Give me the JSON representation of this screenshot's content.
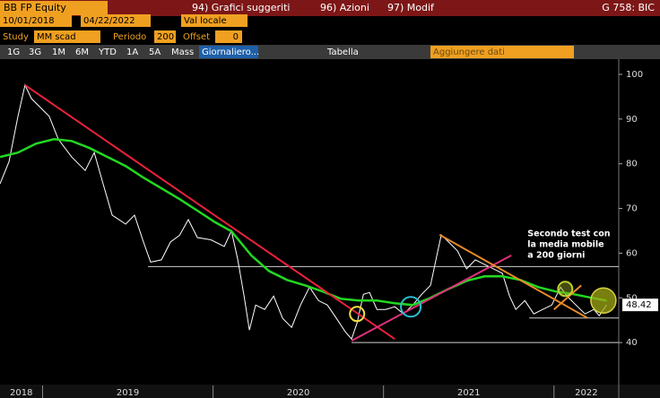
{
  "toolbar": {
    "ticker": "BB FP Equity",
    "menu": [
      "94) Grafici suggeriti",
      "96) Azioni",
      "97) Modif"
    ],
    "code": "G 758: BIC",
    "start_date": "10/01/2018",
    "dash": "-",
    "end_date": "04/22/2022",
    "currency": "Val locale",
    "study_label": "Study",
    "study": "MM scad",
    "period_label": "Periodo",
    "period": "200",
    "offset_label": "Offset",
    "offset": "0",
    "ranges": [
      "1G",
      "3G",
      "1M",
      "6M",
      "YTD",
      "1A",
      "5A",
      "Mass"
    ],
    "frequency": "Giornaliero...",
    "table": "Tabella",
    "add_data": "Aggiungere dati"
  },
  "chart_data": {
    "type": "line",
    "xlim": [
      2018.75,
      2022.38
    ],
    "xticks": [
      {
        "value": 2018,
        "label": "2018"
      },
      {
        "value": 2019,
        "label": "2019"
      },
      {
        "value": 2020,
        "label": "2020"
      },
      {
        "value": 2021,
        "label": "2021"
      },
      {
        "value": 2022,
        "label": "2022"
      }
    ],
    "ylim": [
      30.4,
      101.6
    ],
    "yticks": [
      40,
      50,
      60,
      70,
      80,
      90,
      100
    ],
    "last_value": 48.42,
    "series": [
      {
        "color": "#ffffff",
        "x": [
          2018.75,
          2018.803,
          2018.855,
          2018.897,
          2018.934,
          2018.987,
          2019.039,
          2019.092,
          2019.171,
          2019.25,
          2019.303,
          2019.355,
          2019.408,
          2019.487,
          2019.539,
          2019.592,
          2019.634,
          2019.697,
          2019.75,
          2019.803,
          2019.855,
          2019.908,
          2019.987,
          2020.066,
          2020.108,
          2020.145,
          2020.182,
          2020.213,
          2020.25,
          2020.303,
          2020.355,
          2020.408,
          2020.461,
          2020.513,
          2020.566,
          2020.618,
          2020.671,
          2020.724,
          2020.776,
          2020.813,
          2020.845,
          2020.882,
          2020.918,
          2020.961,
          2021.013,
          2021.066,
          2021.118,
          2021.171,
          2021.224,
          2021.276,
          2021.313,
          2021.339,
          2021.382,
          2021.434,
          2021.487,
          2021.539,
          2021.592,
          2021.645,
          2021.697,
          2021.739,
          2021.776,
          2021.829,
          2021.882,
          2021.934,
          2021.987,
          2022.039,
          2022.076,
          2022.129,
          2022.182,
          2022.234,
          2022.266,
          2022.308
        ],
        "values": [
          75.5,
          80.5,
          90.6,
          97.6,
          94.6,
          92.6,
          90.6,
          85.5,
          81.5,
          78.5,
          82.5,
          75.5,
          68.5,
          66.5,
          68.5,
          62.5,
          58,
          58.5,
          62.5,
          64,
          67.5,
          63.5,
          63,
          61.5,
          65,
          58.5,
          50.4,
          42.8,
          48.4,
          47.4,
          50.4,
          45.4,
          43.4,
          48.4,
          52.4,
          49.4,
          48.4,
          45.4,
          42.4,
          40.8,
          44.4,
          50.8,
          51.2,
          47.4,
          47.4,
          48,
          46.4,
          48.4,
          50.8,
          52.8,
          59.5,
          64.1,
          62.5,
          60.5,
          56.5,
          58.5,
          57.5,
          56.5,
          55.5,
          50.4,
          47.4,
          49.4,
          46.4,
          47.4,
          48.4,
          52.4,
          50.4,
          48.4,
          46.4,
          47.4,
          46,
          48.42
        ]
      },
      {
        "color": "#22d822",
        "x": [
          2018.75,
          2018.855,
          2018.961,
          2019.066,
          2019.171,
          2019.276,
          2019.382,
          2019.487,
          2019.592,
          2019.697,
          2019.803,
          2019.908,
          2020.013,
          2020.108,
          2020.224,
          2020.329,
          2020.434,
          2020.539,
          2020.645,
          2020.75,
          2020.855,
          2020.961,
          2021.066,
          2021.171,
          2021.276,
          2021.382,
          2021.487,
          2021.592,
          2021.697,
          2021.803,
          2021.908,
          2022.013,
          2022.118,
          2022.224,
          2022.308
        ],
        "values": [
          81.5,
          82.5,
          84.5,
          85.5,
          85.1,
          83.5,
          81.5,
          79.5,
          76.9,
          74.5,
          72.1,
          69.5,
          66.9,
          64.9,
          59.5,
          56,
          54,
          52.8,
          51.4,
          49.8,
          49.4,
          49.4,
          48.8,
          48.4,
          50,
          52,
          53.8,
          54.8,
          54.8,
          54,
          52.4,
          51.4,
          50.8,
          50,
          49.4
        ]
      }
    ],
    "hlines": [
      {
        "value": 57,
        "from": 2019.618
      },
      {
        "value": 45.5,
        "from": 2021.855
      },
      {
        "value": 40,
        "from": 2020.813
      }
    ],
    "trendlines": [
      {
        "color": "#e8223a",
        "x": [
          2018.897,
          2021.066
        ],
        "y": [
          97.6,
          40.8
        ]
      },
      {
        "color": "#e0307a",
        "x": [
          2020.813,
          2021.75
        ],
        "y": [
          40.4,
          59.5
        ]
      },
      {
        "color": "#e88a2a",
        "x": [
          2021.329,
          2022.197
        ],
        "y": [
          64.1,
          45.5
        ]
      },
      {
        "color": "#e88a2a",
        "x": [
          2022.0,
          2022.16
        ],
        "y": [
          47.4,
          52.8
        ]
      }
    ],
    "circles": [
      {
        "color": "#f0e040",
        "x": 2020.845,
        "y": 46.4
      },
      {
        "color": "#2ac0d0",
        "x": 2021.16,
        "y": 48
      },
      {
        "color": "#c0d030",
        "x": 2022.066,
        "y": 52
      }
    ],
    "big_circle": {
      "x": 2022.29,
      "y": 49.4
    },
    "annotation": [
      "Secondo test con",
      "la media mobile",
      "a 200 giorni"
    ],
    "annotation_at": {
      "x": 2021.845,
      "y": 64.3
    }
  }
}
